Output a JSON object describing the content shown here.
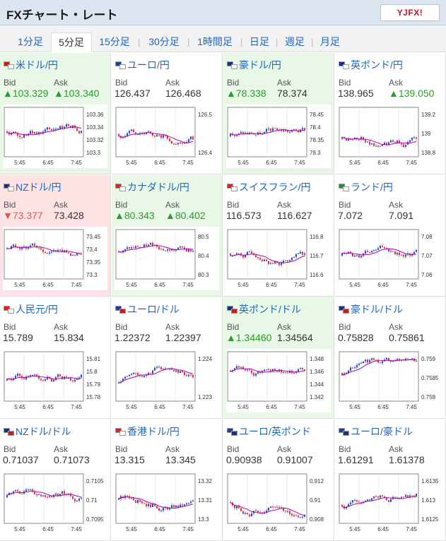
{
  "header": {
    "title": "FXチャート・レート",
    "logo": "YJFX!"
  },
  "tabs": [
    {
      "label": "1分足"
    },
    {
      "label": "5分足"
    },
    {
      "label": "15分足"
    },
    {
      "label": "30分足"
    },
    {
      "label": "1時間足"
    },
    {
      "label": "日足"
    },
    {
      "label": "週足"
    },
    {
      "label": "月足"
    }
  ],
  "labels": {
    "bid": "Bid",
    "ask": "Ask"
  },
  "colors": {
    "up": "#2b9a2b",
    "down": "#d55",
    "candle_up": "#1f4fbf",
    "candle_down": "#e0323c",
    "ma1": "#b000b0",
    "ma2": "#1aa6a6"
  },
  "cells": [
    {
      "pair": "米ドル/円",
      "flags": [
        "us",
        "jp"
      ],
      "bg": "up",
      "bid": "▲103.329",
      "ask": "▲103.340",
      "bid_c": "g",
      "ask_c": "g",
      "ylabels": [
        "103.36",
        "103.34",
        "103.32",
        "103.3"
      ],
      "xlabels": [
        "5:45",
        "6:45",
        "7:45"
      ],
      "seed": 1
    },
    {
      "pair": "ユーロ/円",
      "flags": [
        "eu",
        "jp"
      ],
      "bg": "",
      "bid": "126.437",
      "ask": "126.468",
      "bid_c": "",
      "ask_c": "",
      "ylabels": [
        "126.5",
        "126.4"
      ],
      "xlabels": [
        "5:45",
        "6:45",
        "7:45"
      ],
      "seed": 2
    },
    {
      "pair": "豪ドル/円",
      "flags": [
        "au",
        "jp"
      ],
      "bg": "up",
      "bid": "▲78.338",
      "ask": "78.374",
      "bid_c": "g",
      "ask_c": "",
      "ylabels": [
        "78.45",
        "78.4",
        "78.35",
        "78.3"
      ],
      "xlabels": [
        "5:45",
        "6:45",
        "7:45"
      ],
      "seed": 3
    },
    {
      "pair": "英ポンド/円",
      "flags": [
        "gb",
        "jp"
      ],
      "bg": "",
      "bid": "138.965",
      "ask": "▲139.050",
      "bid_c": "",
      "ask_c": "g",
      "ylabels": [
        "139.2",
        "139",
        "138.8"
      ],
      "xlabels": [
        "5:45",
        "6:45",
        "7:45"
      ],
      "seed": 4
    },
    {
      "pair": "NZドル/円",
      "flags": [
        "nz",
        "jp"
      ],
      "bg": "down",
      "bid": "▼73.377",
      "ask": "73.428",
      "bid_c": "r",
      "ask_c": "",
      "ylabels": [
        "73.45",
        "73.4",
        "73.35",
        "73.3"
      ],
      "xlabels": [
        "5:45",
        "6:45",
        "7:45"
      ],
      "seed": 5
    },
    {
      "pair": "カナダドル/円",
      "flags": [
        "ca",
        "jp"
      ],
      "bg": "up",
      "bid": "▲80.343",
      "ask": "▲80.402",
      "bid_c": "g",
      "ask_c": "g",
      "ylabels": [
        "80.5",
        "80.4",
        "80.3"
      ],
      "xlabels": [
        "5:45",
        "6:45",
        "7:45"
      ],
      "seed": 6
    },
    {
      "pair": "スイスフラン/円",
      "flags": [
        "ch",
        "jp"
      ],
      "bg": "",
      "bid": "116.573",
      "ask": "116.627",
      "bid_c": "",
      "ask_c": "",
      "ylabels": [
        "116.8",
        "116.7",
        "116.6"
      ],
      "xlabels": [
        "5:45",
        "6:45",
        "7:45"
      ],
      "seed": 7
    },
    {
      "pair": "ランド/円",
      "flags": [
        "za",
        "jp"
      ],
      "bg": "",
      "bid": "7.072",
      "ask": "7.091",
      "bid_c": "",
      "ask_c": "",
      "ylabels": [
        "7.08",
        "7.07",
        "7.06"
      ],
      "xlabels": [
        "5:45",
        "6:45",
        "7:45"
      ],
      "seed": 8
    },
    {
      "pair": "人民元/円",
      "flags": [
        "cn",
        "jp"
      ],
      "bg": "",
      "bid": "15.789",
      "ask": "15.834",
      "bid_c": "",
      "ask_c": "",
      "ylabels": [
        "15.81",
        "15.8",
        "15.79",
        "15.78"
      ],
      "xlabels": [
        "5:45",
        "6:45",
        "7:45"
      ],
      "seed": 9
    },
    {
      "pair": "ユーロ/ドル",
      "flags": [
        "eu",
        "us"
      ],
      "bg": "",
      "bid": "1.22372",
      "ask": "1.22397",
      "bid_c": "",
      "ask_c": "",
      "ylabels": [
        "1.224",
        "1.223"
      ],
      "xlabels": [
        "5:45",
        "6:45",
        "7:45"
      ],
      "seed": 10
    },
    {
      "pair": "英ポンド/ドル",
      "flags": [
        "gb",
        "us"
      ],
      "bg": "up",
      "bid": "▲1.34460",
      "ask": "1.34564",
      "bid_c": "g",
      "ask_c": "",
      "ylabels": [
        "1.348",
        "1.346",
        "1.344",
        "1.342"
      ],
      "xlabels": [
        "5:45",
        "6:45",
        "7:45"
      ],
      "seed": 11
    },
    {
      "pair": "豪ドル/ドル",
      "flags": [
        "au",
        "us"
      ],
      "bg": "",
      "bid": "0.75828",
      "ask": "0.75861",
      "bid_c": "",
      "ask_c": "",
      "ylabels": [
        "0.759",
        "0.7585",
        "0.758"
      ],
      "xlabels": [
        "5:45",
        "6:45",
        "7:45"
      ],
      "seed": 12
    },
    {
      "pair": "NZドル/ドル",
      "flags": [
        "nz",
        "us"
      ],
      "bg": "",
      "bid": "0.71037",
      "ask": "0.71073",
      "bid_c": "",
      "ask_c": "",
      "ylabels": [
        "0.7105",
        "0.71",
        "0.7095"
      ],
      "xlabels": [
        "5:45",
        "6:45",
        "7:45"
      ],
      "seed": 13
    },
    {
      "pair": "香港ドル/円",
      "flags": [
        "hk",
        "jp"
      ],
      "bg": "",
      "bid": "13.315",
      "ask": "13.345",
      "bid_c": "",
      "ask_c": "",
      "ylabels": [
        "13.32",
        "13.31",
        "13.3"
      ],
      "xlabels": [
        "5:45",
        "6:45",
        "7:45"
      ],
      "seed": 14
    },
    {
      "pair": "ユーロ/英ポンド",
      "flags": [
        "eu",
        "gb"
      ],
      "bg": "",
      "bid": "0.90938",
      "ask": "0.91007",
      "bid_c": "",
      "ask_c": "",
      "ylabels": [
        "0.912",
        "0.91",
        "0.908"
      ],
      "xlabels": [
        "5:45",
        "6:45",
        "7:45"
      ],
      "seed": 15
    },
    {
      "pair": "ユーロ/豪ドル",
      "flags": [
        "eu",
        "au"
      ],
      "bg": "",
      "bid": "1.61291",
      "ask": "1.61378",
      "bid_c": "",
      "ask_c": "",
      "ylabels": [
        "1.6135",
        "1.613",
        "1.6125"
      ],
      "xlabels": [
        "5:45",
        "6:45",
        "7:45"
      ],
      "seed": 16
    }
  ]
}
